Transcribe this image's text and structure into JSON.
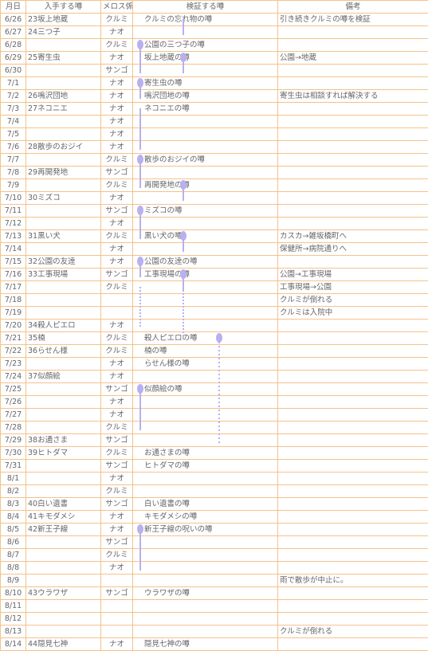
{
  "table": {
    "header": [
      "月日",
      "入手する噂",
      "メロス係",
      "検証する噂",
      "備考"
    ],
    "rows": [
      [
        "6/26",
        "23坂上地蔵",
        "クルミ",
        "クルミの忘れ物の噂",
        "引き続きクルミの噂を検証"
      ],
      [
        "6/27",
        "24三つ子",
        "ナオ",
        null,
        null
      ],
      [
        "6/28",
        null,
        "クルミ",
        "公園の三つ子の噂",
        null
      ],
      [
        "6/29",
        "25寄生虫",
        "ナオ",
        "坂上地蔵の噂",
        "公園→地蔵"
      ],
      [
        "6/30",
        null,
        "サンゴ",
        null,
        null
      ],
      [
        "7/1",
        null,
        "ナオ",
        "寄生虫の噂",
        null
      ],
      [
        "7/2",
        "26鳴沢団地",
        "ナオ",
        "鳴沢団地の噂",
        "寄生虫は相談すれば解決する"
      ],
      [
        "7/3",
        "27ネコニエ",
        "ナオ",
        "ネコニエの噂",
        null
      ],
      [
        "7/4",
        null,
        "ナオ",
        null,
        null
      ],
      [
        "7/5",
        null,
        "ナオ",
        null,
        null
      ],
      [
        "7/6",
        "28散歩のおジイ",
        "ナオ",
        null,
        null
      ],
      [
        "7/7",
        null,
        "クルミ",
        "散歩のおジイの噂",
        null
      ],
      [
        "7/8",
        "29再開発地",
        "サンゴ",
        null,
        null
      ],
      [
        "7/9",
        null,
        "クルミ",
        "再開発地の噂",
        null
      ],
      [
        "7/10",
        "30ミズコ",
        "ナオ",
        null,
        null
      ],
      [
        "7/11",
        null,
        "サンゴ",
        "ミズコの噂",
        null
      ],
      [
        "7/12",
        null,
        "ナオ",
        null,
        null
      ],
      [
        "7/13",
        "31黒い犬",
        "クルミ",
        "黒い犬の噂",
        "カスカ→雑坂橋町へ"
      ],
      [
        "7/14",
        null,
        "ナオ",
        null,
        "保健所→病院通りへ"
      ],
      [
        "7/15",
        "32公園の友達",
        "ナオ",
        "公園の友達の噂",
        null
      ],
      [
        "7/16",
        "33工事現場",
        "サンゴ",
        "工事現場の噂",
        "公園→工事現場"
      ],
      [
        "7/17",
        null,
        "クルミ",
        null,
        "工事現場→公園"
      ],
      [
        "7/18",
        null,
        null,
        null,
        "クルミが倒れる"
      ],
      [
        "7/19",
        null,
        null,
        null,
        "クルミは入院中"
      ],
      [
        "7/20",
        "34殺人ピエロ",
        "ナオ",
        null,
        null
      ],
      [
        "7/21",
        "35楠",
        "クルミ",
        "殺人ピエロの噂",
        null
      ],
      [
        "7/22",
        "36らせん様",
        "クルミ",
        "楠の噂",
        null
      ],
      [
        "7/23",
        null,
        "ナオ",
        "らせん様の噂",
        null
      ],
      [
        "7/24",
        "37似顔絵",
        "ナオ",
        null,
        null
      ],
      [
        "7/25",
        null,
        "サンゴ",
        "似顔絵の噂",
        null
      ],
      [
        "7/26",
        null,
        "ナオ",
        null,
        null
      ],
      [
        "7/27",
        null,
        "ナオ",
        null,
        null
      ],
      [
        "7/28",
        null,
        "クルミ",
        null,
        null
      ],
      [
        "7/29",
        "38お通さま",
        "サンゴ",
        null,
        null
      ],
      [
        "7/30",
        "39ヒトダマ",
        "クルミ",
        "お通さまの噂",
        null
      ],
      [
        "7/31",
        null,
        "サンゴ",
        "ヒトダマの噂",
        null
      ],
      [
        "8/1",
        null,
        "ナオ",
        null,
        null
      ],
      [
        "8/2",
        null,
        "クルミ",
        null,
        null
      ],
      [
        "8/3",
        "40白い遺書",
        "サンゴ",
        "白い遺書の噂",
        null
      ],
      [
        "8/4",
        "41キモダメシ",
        "ナオ",
        "キモダメシの噂",
        null
      ],
      [
        "8/5",
        "42新王子線",
        "ナオ",
        "新王子線の呪いの噂",
        null
      ],
      [
        "8/6",
        null,
        "サンゴ",
        null,
        null
      ],
      [
        "8/7",
        null,
        "クルミ",
        null,
        null
      ],
      [
        "8/8",
        null,
        "ナオ",
        null,
        null
      ],
      [
        "8/9",
        null,
        null,
        null,
        "雨で散歩が中止に。"
      ],
      [
        "8/10",
        "43ウラワザ",
        "サンゴ",
        "ウラワザの噂",
        null
      ],
      [
        "8/11",
        null,
        null,
        null,
        null
      ],
      [
        "8/12",
        null,
        null,
        null,
        null
      ],
      [
        "8/13",
        null,
        null,
        null,
        "クルミが倒れる"
      ],
      [
        "8/14",
        "44隠見七神",
        "ナオ",
        "隠見七神の噂",
        null
      ]
    ]
  }
}
